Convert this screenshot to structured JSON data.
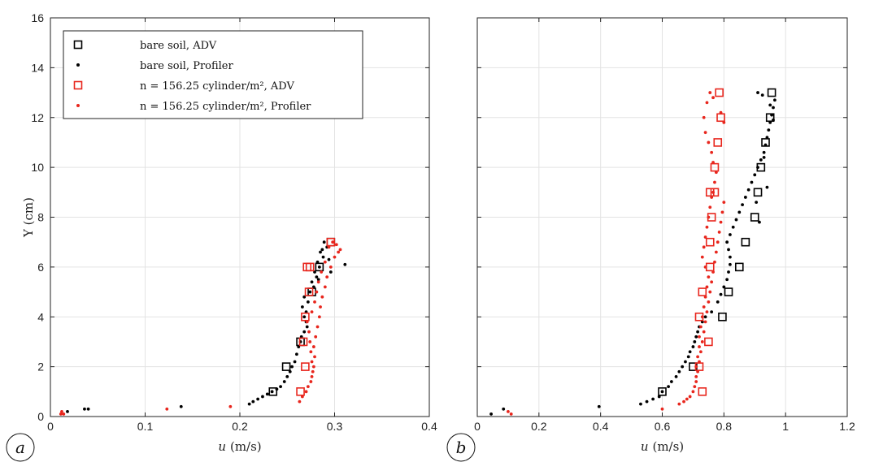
{
  "chart_data": [
    {
      "type": "scatter",
      "panel_label": "a",
      "xlabel": "u (m/s)",
      "xlabel_var": "u",
      "xlabel_unit": "(m/s)",
      "ylabel": "Y (cm)",
      "xlim": [
        0,
        0.4
      ],
      "ylim": [
        0,
        16
      ],
      "xticks": [
        "0",
        "0.1",
        "0.2",
        "0.3",
        "0.4"
      ],
      "yticks": [
        "0",
        "2",
        "4",
        "6",
        "8",
        "10",
        "12",
        "14",
        "16"
      ],
      "grid": true,
      "legend_position": "top-left",
      "legend": [
        {
          "label": "bare soil, ADV",
          "marker": "square",
          "color": "#000000"
        },
        {
          "label": "bare soil, Profiler",
          "marker": "dot",
          "color": "#000000"
        },
        {
          "label": "n = 156.25 cylinder/m², ADV",
          "marker": "square",
          "color": "#e8261d"
        },
        {
          "label": "n = 156.25 cylinder/m², Profiler",
          "marker": "dot",
          "color": "#e8261d"
        }
      ],
      "series": [
        {
          "name": "bare soil, ADV",
          "marker": "square",
          "color": "#000000",
          "x": [
            0.235,
            0.249,
            0.264,
            0.276,
            0.284,
            0.296
          ],
          "y": [
            1,
            2,
            3,
            5,
            6,
            7
          ]
        },
        {
          "name": "bare soil, Profiler",
          "marker": "dot",
          "color": "#000000",
          "x": [
            0.018,
            0.036,
            0.04,
            0.138,
            0.21,
            0.214,
            0.219,
            0.224,
            0.229,
            0.234,
            0.239,
            0.243,
            0.247,
            0.25,
            0.253,
            0.255,
            0.258,
            0.26,
            0.262,
            0.264,
            0.265,
            0.268,
            0.271,
            0.27,
            0.268,
            0.27,
            0.266,
            0.272,
            0.268,
            0.274,
            0.278,
            0.276,
            0.281,
            0.279,
            0.284,
            0.282,
            0.288,
            0.285,
            0.292,
            0.289,
            0.296,
            0.311,
            0.287,
            0.294,
            0.283
          ],
          "y": [
            0.2,
            0.3,
            0.3,
            0.4,
            0.5,
            0.6,
            0.7,
            0.8,
            0.9,
            1.0,
            1.1,
            1.2,
            1.4,
            1.6,
            1.8,
            2.0,
            2.2,
            2.5,
            2.8,
            3.0,
            3.2,
            3.4,
            3.6,
            3.8,
            4.0,
            4.2,
            4.4,
            4.6,
            4.8,
            5.0,
            5.2,
            5.4,
            5.6,
            5.8,
            6.0,
            6.2,
            6.4,
            6.6,
            6.8,
            7.0,
            5.8,
            6.1,
            6.7,
            6.3,
            5.5
          ]
        },
        {
          "name": "n = 156.25 cylinder/m², ADV",
          "marker": "square",
          "color": "#e8261d",
          "x": [
            0.264,
            0.269,
            0.267,
            0.269,
            0.273,
            0.271,
            0.274,
            0.296
          ],
          "y": [
            1,
            2,
            3,
            4,
            5,
            6,
            6,
            7
          ]
        },
        {
          "name": "n = 156.25 cylinder/m², Profiler",
          "marker": "dot",
          "color": "#e8261d",
          "x": [
            0.011,
            0.012,
            0.014,
            0.123,
            0.19,
            0.263,
            0.266,
            0.27,
            0.272,
            0.275,
            0.276,
            0.277,
            0.278,
            0.276,
            0.279,
            0.275,
            0.278,
            0.274,
            0.28,
            0.273,
            0.282,
            0.271,
            0.284,
            0.276,
            0.285,
            0.279,
            0.287,
            0.281,
            0.29,
            0.283,
            0.292,
            0.286,
            0.296,
            0.29,
            0.3,
            0.304,
            0.294,
            0.298,
            0.302,
            0.306
          ],
          "y": [
            0.1,
            0.2,
            0.1,
            0.3,
            0.4,
            0.6,
            0.8,
            1.0,
            1.2,
            1.4,
            1.6,
            1.8,
            2.0,
            2.2,
            2.4,
            2.6,
            2.8,
            3.0,
            3.2,
            3.4,
            3.6,
            3.8,
            4.0,
            4.2,
            4.4,
            4.6,
            4.8,
            5.0,
            5.2,
            5.4,
            5.6,
            5.8,
            6.0,
            6.2,
            6.4,
            6.6,
            6.8,
            7.0,
            6.9,
            6.7
          ]
        }
      ]
    },
    {
      "type": "scatter",
      "panel_label": "b",
      "xlabel": "u (m/s)",
      "xlabel_var": "u",
      "xlabel_unit": "(m/s)",
      "ylabel": "",
      "xlim": [
        0,
        1.2
      ],
      "ylim": [
        0,
        16
      ],
      "xticks": [
        "0",
        "0.2",
        "0.4",
        "0.6",
        "0.8",
        "1",
        "1.2"
      ],
      "yticks": [],
      "grid": true,
      "series": [
        {
          "name": "bare soil, ADV",
          "marker": "square",
          "color": "#000000",
          "x": [
            0.6,
            0.7,
            0.795,
            0.815,
            0.85,
            0.87,
            0.9,
            0.91,
            0.92,
            0.935,
            0.95,
            0.955
          ],
          "y": [
            1,
            2,
            4,
            5,
            6,
            7,
            8,
            9,
            10,
            11,
            12,
            13
          ]
        },
        {
          "name": "bare soil, Profiler",
          "marker": "dot",
          "color": "#000000",
          "x": [
            0.045,
            0.085,
            0.395,
            0.53,
            0.55,
            0.57,
            0.59,
            0.6,
            0.62,
            0.63,
            0.645,
            0.655,
            0.665,
            0.675,
            0.685,
            0.69,
            0.7,
            0.705,
            0.71,
            0.715,
            0.72,
            0.73,
            0.74,
            0.76,
            0.78,
            0.79,
            0.8,
            0.81,
            0.815,
            0.82,
            0.82,
            0.815,
            0.81,
            0.82,
            0.83,
            0.84,
            0.85,
            0.86,
            0.87,
            0.88,
            0.89,
            0.9,
            0.91,
            0.92,
            0.93,
            0.935,
            0.94,
            0.945,
            0.95,
            0.955,
            0.96,
            0.965,
            0.91,
            0.925,
            0.95,
            0.96,
            0.93,
            0.94,
            0.915,
            0.905
          ],
          "y": [
            0.1,
            0.3,
            0.4,
            0.5,
            0.6,
            0.7,
            0.8,
            1.0,
            1.2,
            1.4,
            1.6,
            1.8,
            2.0,
            2.2,
            2.4,
            2.6,
            2.8,
            3.0,
            3.2,
            3.4,
            3.6,
            3.8,
            4.0,
            4.2,
            4.6,
            4.9,
            5.2,
            5.5,
            5.8,
            6.1,
            6.4,
            6.7,
            7.0,
            7.3,
            7.6,
            7.9,
            8.2,
            8.5,
            8.8,
            9.1,
            9.4,
            9.7,
            10.0,
            10.3,
            10.6,
            10.9,
            11.2,
            11.5,
            11.8,
            12.1,
            12.4,
            12.7,
            13.0,
            12.9,
            12.5,
            11.9,
            10.4,
            9.2,
            7.8,
            8.6
          ]
        },
        {
          "name": "n = 156.25 cylinder/m², ADV",
          "marker": "square",
          "color": "#e8261d",
          "x": [
            0.73,
            0.72,
            0.75,
            0.72,
            0.73,
            0.755,
            0.755,
            0.76,
            0.77,
            0.755,
            0.77,
            0.78,
            0.79,
            0.785
          ],
          "y": [
            1,
            2,
            3,
            4,
            5,
            6,
            7,
            8,
            9,
            9,
            10,
            11,
            12,
            13
          ]
        },
        {
          "name": "n = 156.25 cylinder/m², Profiler",
          "marker": "dot",
          "color": "#e8261d",
          "x": [
            0.11,
            0.1,
            0.6,
            0.655,
            0.67,
            0.68,
            0.69,
            0.7,
            0.705,
            0.71,
            0.71,
            0.715,
            0.71,
            0.72,
            0.715,
            0.725,
            0.72,
            0.73,
            0.72,
            0.735,
            0.725,
            0.74,
            0.73,
            0.745,
            0.735,
            0.75,
            0.74,
            0.755,
            0.745,
            0.76,
            0.75,
            0.765,
            0.74,
            0.77,
            0.73,
            0.775,
            0.735,
            0.78,
            0.74,
            0.785,
            0.745,
            0.79,
            0.75,
            0.795,
            0.755,
            0.8,
            0.76,
            0.765,
            0.77,
            0.775,
            0.765,
            0.76,
            0.75,
            0.74,
            0.8,
            0.79,
            0.745,
            0.755,
            0.765,
            0.735
          ],
          "y": [
            0.1,
            0.2,
            0.3,
            0.5,
            0.6,
            0.7,
            0.8,
            1.0,
            1.2,
            1.4,
            1.6,
            1.8,
            2.0,
            2.2,
            2.4,
            2.6,
            2.8,
            3.0,
            3.2,
            3.4,
            3.6,
            3.8,
            4.0,
            4.2,
            4.4,
            4.6,
            4.8,
            5.0,
            5.2,
            5.4,
            5.6,
            5.8,
            6.0,
            6.2,
            6.4,
            6.6,
            6.8,
            7.0,
            7.2,
            7.4,
            7.6,
            7.8,
            8.0,
            8.2,
            8.4,
            8.6,
            8.8,
            9.0,
            9.4,
            9.8,
            10.2,
            10.6,
            11.0,
            11.4,
            11.8,
            12.2,
            12.6,
            13.0,
            12.8,
            12.0
          ]
        }
      ]
    }
  ]
}
